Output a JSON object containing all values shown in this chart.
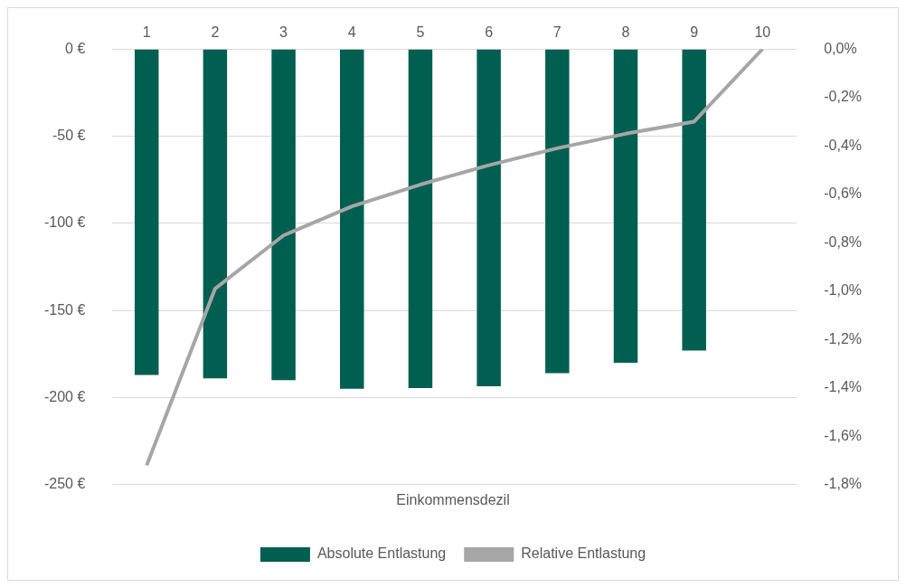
{
  "chart_data": {
    "type": "bar",
    "categories": [
      "1",
      "2",
      "3",
      "4",
      "5",
      "6",
      "7",
      "8",
      "9",
      "10"
    ],
    "xlabel": "Einkommensdezil",
    "series": [
      {
        "name": "Absolute Entlastung",
        "color": "#005f50",
        "values": [
          -187,
          -189,
          -190,
          -195,
          -194.5,
          -193.5,
          -186,
          -180,
          -173,
          0
        ]
      },
      {
        "name": "Relative Entlastung",
        "type": "line",
        "axis": "y2",
        "color": "#a6a6a6",
        "marker": "none",
        "values": [
          -1.72,
          -0.99,
          -0.77,
          -0.65,
          -0.56,
          -0.48,
          -0.41,
          -0.35,
          -0.3,
          0
        ]
      }
    ],
    "ylim": [
      -250,
      0
    ],
    "yticks": [
      {
        "value": -250,
        "label": "-250 €"
      },
      {
        "value": -200,
        "label": "-200 €"
      },
      {
        "value": -150,
        "label": "-150 €"
      },
      {
        "value": -100,
        "label": "-100 €"
      },
      {
        "value": -50,
        "label": "-50 €"
      },
      {
        "value": 0,
        "label": "0 €"
      }
    ],
    "y2lim": [
      -1.8,
      0
    ],
    "y2ticks": [
      {
        "value": -1.8,
        "label": "-1,8%"
      },
      {
        "value": -1.6,
        "label": "-1,6%"
      },
      {
        "value": -1.4,
        "label": "-1,4%"
      },
      {
        "value": -1.2,
        "label": "-1,2%"
      },
      {
        "value": -1.0,
        "label": "-1,0%"
      },
      {
        "value": -0.8,
        "label": "-0,8%"
      },
      {
        "value": -0.6,
        "label": "-0,6%"
      },
      {
        "value": -0.4,
        "label": "-0,4%"
      },
      {
        "value": -0.2,
        "label": "-0,2%"
      },
      {
        "value": 0,
        "label": "0,0%"
      }
    ],
    "grid": "y",
    "legend": "bottom"
  }
}
